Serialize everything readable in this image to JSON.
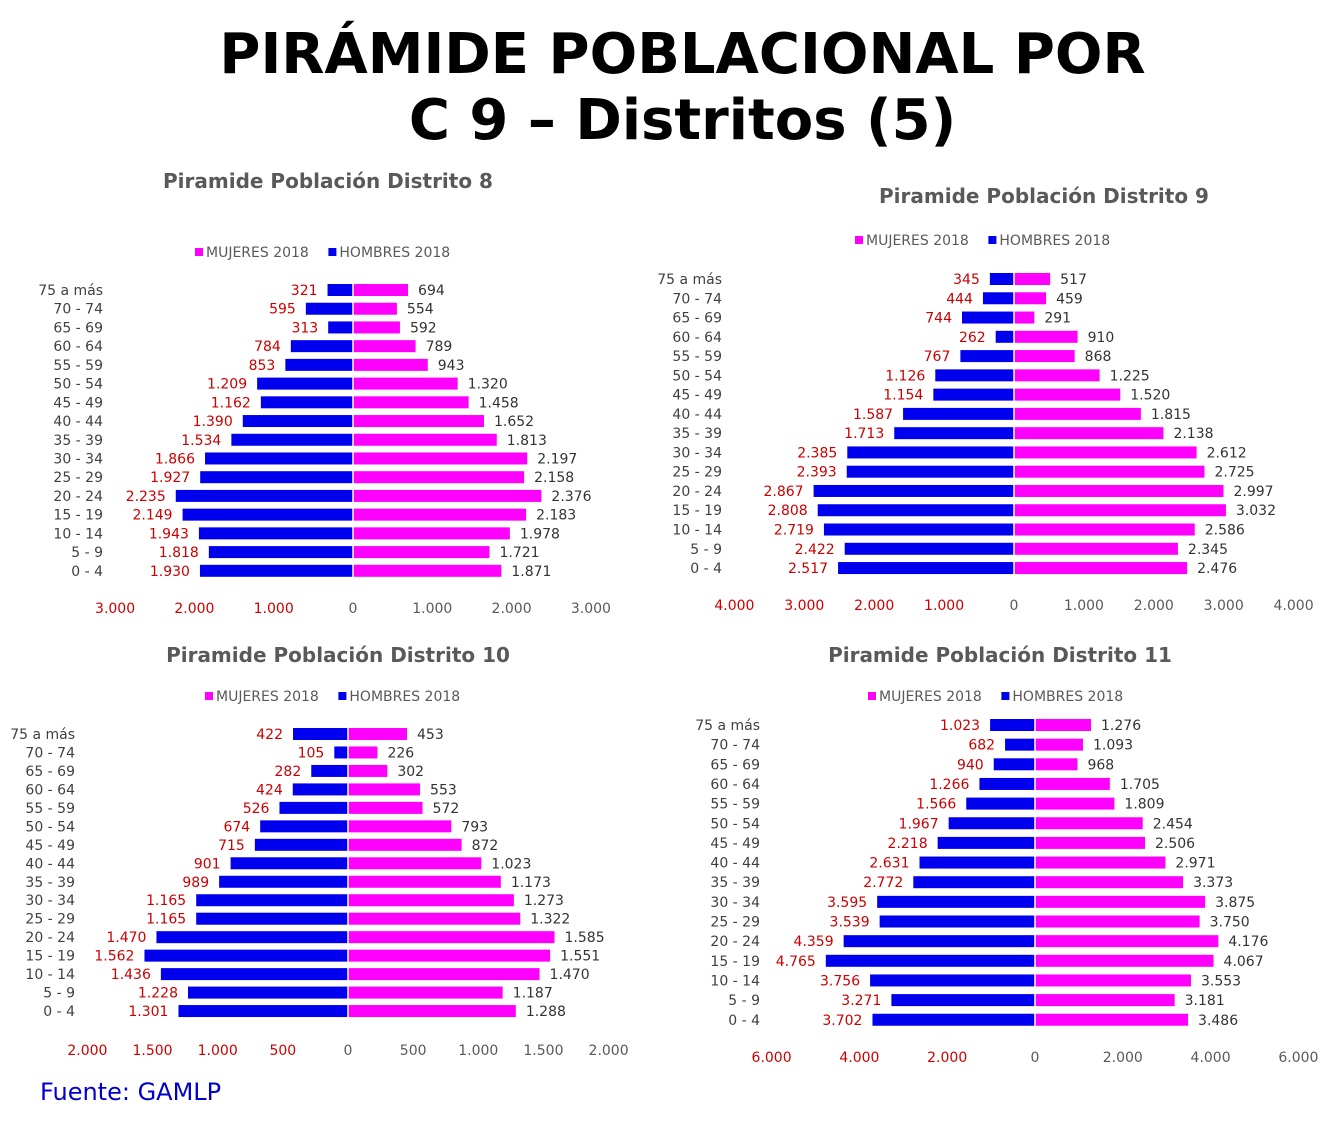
{
  "title": {
    "line1": "PIRÁMIDE POBLACIONAL POR",
    "line2": "C 9 – Distritos (5)"
  },
  "source": "Fuente: GAMLP",
  "colors": {
    "hombres": "#0000ee",
    "mujeres": "#ff00ff",
    "left_label": "#cc0000",
    "right_label": "#333333"
  },
  "chart_data": [
    {
      "type": "bar",
      "title": "Piramide Población Distrito 8",
      "legend": [
        "MUJERES 2018",
        "HOMBRES 2018"
      ],
      "categories": [
        "75 a más",
        "70 - 74",
        "65 - 69",
        "60 - 64",
        "55 - 59",
        "50 - 54",
        "45 - 49",
        "40 - 44",
        "35 - 39",
        "30 - 34",
        "25 - 29",
        "20 - 24",
        "15 - 19",
        "10 - 14",
        "5 - 9",
        "0 - 4"
      ],
      "series": [
        {
          "name": "HOMBRES 2018",
          "values": [
            321,
            595,
            313,
            784,
            853,
            1209,
            1162,
            1390,
            1534,
            1866,
            1927,
            2235,
            2149,
            1943,
            1818,
            1930
          ],
          "labels": [
            "321",
            "595",
            "313",
            "784",
            "853",
            "1.209",
            "1.162",
            "1.390",
            "1.534",
            "1.866",
            "1.927",
            "2.235",
            "2.149",
            "1.943",
            "1.818",
            "1.930"
          ]
        },
        {
          "name": "MUJERES 2018",
          "values": [
            694,
            554,
            592,
            789,
            943,
            1320,
            1458,
            1652,
            1813,
            2197,
            2158,
            2376,
            2183,
            1978,
            1721,
            1871
          ],
          "labels": [
            "694",
            "554",
            "592",
            "789",
            "943",
            "1.320",
            "1.458",
            "1.652",
            "1.813",
            "2.197",
            "2.158",
            "2.376",
            "2.183",
            "1.978",
            "1.721",
            "1.871"
          ]
        }
      ],
      "xlim": [
        -3000,
        3000
      ],
      "xticks": [
        -3000,
        -2000,
        -1000,
        0,
        1000,
        2000,
        3000
      ],
      "xtick_labels": [
        "3.000",
        "2.000",
        "1.000",
        "0",
        "1.000",
        "2.000",
        "3.000"
      ]
    },
    {
      "type": "bar",
      "title": "Piramide Población Distrito 9",
      "legend": [
        "MUJERES 2018",
        "HOMBRES 2018"
      ],
      "categories": [
        "75 a más",
        "70 - 74",
        "65 - 69",
        "60 - 64",
        "55 - 59",
        "50 - 54",
        "45 - 49",
        "40 - 44",
        "35 - 39",
        "30 - 34",
        "25 - 29",
        "20 - 24",
        "15 - 19",
        "10 - 14",
        "5 - 9",
        "0 - 4"
      ],
      "series": [
        {
          "name": "HOMBRES 2018",
          "values": [
            345,
            444,
            744,
            262,
            767,
            1126,
            1154,
            1587,
            1713,
            2385,
            2393,
            2867,
            2808,
            2719,
            2422,
            2517
          ],
          "labels": [
            "345",
            "444",
            "744",
            "262",
            "767",
            "1.126",
            "1.154",
            "1.587",
            "1.713",
            "2.385",
            "2.393",
            "2.867",
            "2.808",
            "2.719",
            "2.422",
            "2.517"
          ]
        },
        {
          "name": "MUJERES 2018",
          "values": [
            517,
            459,
            291,
            910,
            868,
            1225,
            1520,
            1815,
            2138,
            2612,
            2725,
            2997,
            3032,
            2586,
            2345,
            2476
          ],
          "labels": [
            "517",
            "459",
            "291",
            "910",
            "868",
            "1.225",
            "1.520",
            "1.815",
            "2.138",
            "2.612",
            "2.725",
            "2.997",
            "3.032",
            "2.586",
            "2.345",
            "2.476"
          ]
        }
      ],
      "xlim": [
        -4000,
        4000
      ],
      "xticks": [
        -4000,
        -3000,
        -2000,
        -1000,
        0,
        1000,
        2000,
        3000,
        4000
      ],
      "xtick_labels": [
        "4.000",
        "3.000",
        "2.000",
        "1.000",
        "0",
        "1.000",
        "2.000",
        "3.000",
        "4.000"
      ]
    },
    {
      "type": "bar",
      "title": "Piramide Población Distrito 10",
      "legend": [
        "MUJERES 2018",
        "HOMBRES 2018"
      ],
      "categories": [
        "75 a más",
        "70 - 74",
        "65 - 69",
        "60 - 64",
        "55 - 59",
        "50 - 54",
        "45 - 49",
        "40 - 44",
        "35 - 39",
        "30 - 34",
        "25 - 29",
        "20 - 24",
        "15 - 19",
        "10 - 14",
        "5 - 9",
        "0 - 4"
      ],
      "series": [
        {
          "name": "HOMBRES 2018",
          "values": [
            422,
            105,
            282,
            424,
            526,
            674,
            715,
            901,
            989,
            1165,
            1165,
            1470,
            1562,
            1436,
            1228,
            1301
          ],
          "labels": [
            "422",
            "105",
            "282",
            "424",
            "526",
            "674",
            "715",
            "901",
            "989",
            "1.165",
            "1.165",
            "1.470",
            "1.562",
            "1.436",
            "1.228",
            "1.301"
          ]
        },
        {
          "name": "MUJERES 2018",
          "values": [
            453,
            226,
            302,
            553,
            572,
            793,
            872,
            1023,
            1173,
            1273,
            1322,
            1585,
            1551,
            1470,
            1187,
            1288
          ],
          "labels": [
            "453",
            "226",
            "302",
            "553",
            "572",
            "793",
            "872",
            "1.023",
            "1.173",
            "1.273",
            "1.322",
            "1.585",
            "1.551",
            "1.470",
            "1.187",
            "1.288"
          ]
        }
      ],
      "xlim": [
        -2000,
        2000
      ],
      "xticks": [
        -2000,
        -1500,
        -1000,
        -500,
        0,
        500,
        1000,
        1500,
        2000
      ],
      "xtick_labels": [
        "2.000",
        "1.500",
        "1.000",
        "500",
        "0",
        "500",
        "1.000",
        "1.500",
        "2.000"
      ]
    },
    {
      "type": "bar",
      "title": "Piramide Población Distrito 11",
      "legend": [
        "MUJERES 2018",
        "HOMBRES 2018"
      ],
      "categories": [
        "75 a más",
        "70 - 74",
        "65 - 69",
        "60 - 64",
        "55 - 59",
        "50 - 54",
        "45 - 49",
        "40 - 44",
        "35 - 39",
        "30 - 34",
        "25 - 29",
        "20 - 24",
        "15 - 19",
        "10 - 14",
        "5 - 9",
        "0 - 4"
      ],
      "series": [
        {
          "name": "HOMBRES 2018",
          "values": [
            1023,
            682,
            940,
            1266,
            1566,
            1967,
            2218,
            2631,
            2772,
            3595,
            3539,
            4359,
            4765,
            3756,
            3271,
            3702
          ],
          "labels": [
            "1.023",
            "682",
            "940",
            "1.266",
            "1.566",
            "1.967",
            "2.218",
            "2.631",
            "2.772",
            "3.595",
            "3.539",
            "4.359",
            "4.765",
            "3.756",
            "3.271",
            "3.702"
          ]
        },
        {
          "name": "MUJERES 2018",
          "values": [
            1276,
            1093,
            968,
            1705,
            1809,
            2454,
            2506,
            2971,
            3373,
            3875,
            3750,
            4176,
            4067,
            3553,
            3181,
            3486
          ],
          "labels": [
            "1.276",
            "1.093",
            "968",
            "1.705",
            "1.809",
            "2.454",
            "2.506",
            "2.971",
            "3.373",
            "3.875",
            "3.750",
            "4.176",
            "4.067",
            "3.553",
            "3.181",
            "3.486"
          ]
        }
      ],
      "xlim": [
        -6000,
        6000
      ],
      "xticks": [
        -6000,
        -4000,
        -2000,
        0,
        2000,
        4000,
        6000
      ],
      "xtick_labels": [
        "6.000",
        "4.000",
        "2.000",
        "0",
        "2.000",
        "4.000",
        "6.000"
      ]
    }
  ]
}
